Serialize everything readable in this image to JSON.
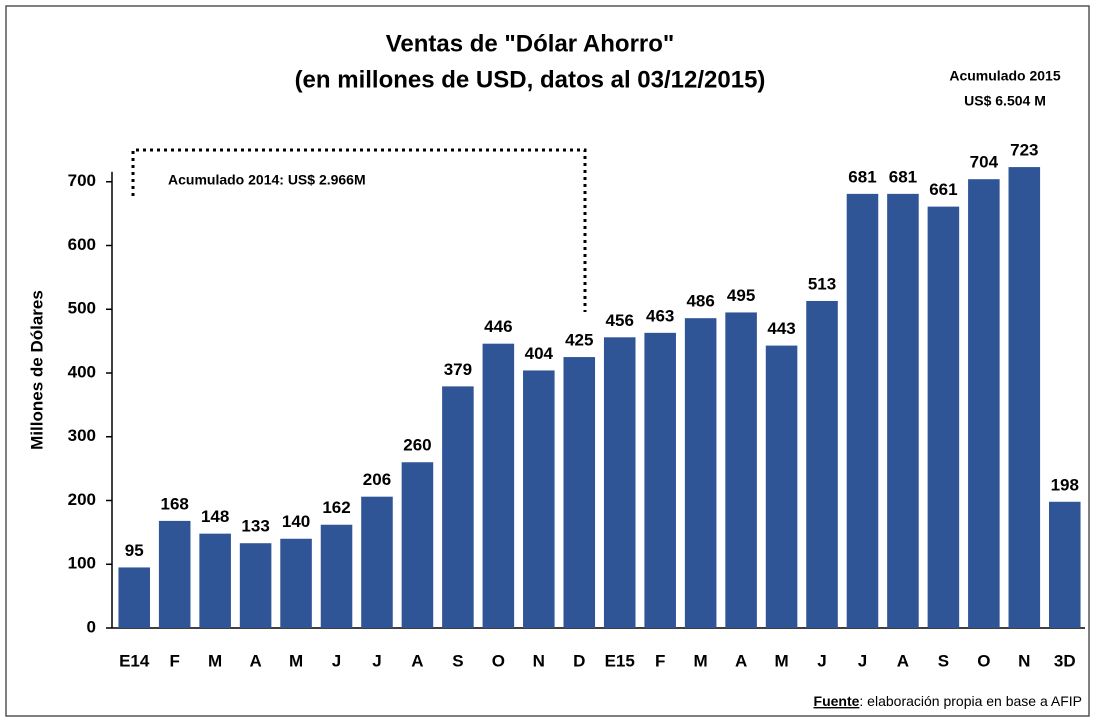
{
  "chart_data": {
    "type": "bar",
    "title": "Ventas de \"Dólar Ahorro\"",
    "subtitle": "(en millones de USD, datos al 03/12/2015)",
    "y_label": "Millones de Dólares",
    "annotations": [
      "Acumulado 2014:  US$ 2.966M",
      "Acumulado  2015",
      "US$ 6.504 M"
    ],
    "source_label": "Fuente",
    "source_text": ": elaboración propia en base a AFIP",
    "categories": [
      "E14",
      "F",
      "M",
      "A",
      "M",
      "J",
      "J",
      "A",
      "S",
      "O",
      "N",
      "D",
      "E15",
      "F",
      "M",
      "A",
      "M",
      "J",
      "J",
      "A",
      "S",
      "O",
      "N",
      "3D"
    ],
    "values": [
      95,
      168,
      148,
      133,
      140,
      162,
      206,
      260,
      379,
      446,
      404,
      425,
      456,
      463,
      486,
      495,
      443,
      513,
      681,
      681,
      661,
      704,
      723,
      198
    ],
    "color": "#2f5597",
    "ylim": [
      0,
      800
    ],
    "yticks": [
      0,
      100,
      200,
      300,
      400,
      500,
      600,
      700
    ],
    "grid": false
  }
}
